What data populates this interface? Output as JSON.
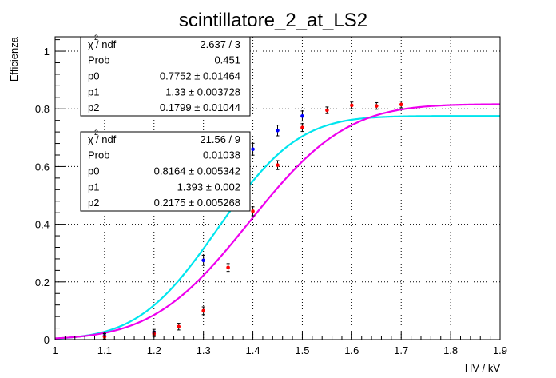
{
  "chart_data": {
    "type": "scatter",
    "title": "scintillatore_2_at_LS2",
    "xlabel": "HV / kV",
    "ylabel": "Efficienza",
    "xlim": [
      1.0,
      1.9
    ],
    "ylim": [
      0.0,
      1.05
    ],
    "x_ticks": [
      1.0,
      1.1,
      1.2,
      1.3,
      1.4,
      1.5,
      1.6,
      1.7,
      1.8,
      1.9
    ],
    "x_tick_labels": [
      "1",
      "1.1",
      "1.2",
      "1.3",
      "1.4",
      "1.5",
      "1.6",
      "1.7",
      "1.8",
      "1.9"
    ],
    "y_ticks": [
      0,
      0.2,
      0.4,
      0.6,
      0.8,
      1.0
    ],
    "y_tick_labels": [
      "0",
      "0.2",
      "0.4",
      "0.6",
      "0.8",
      "1"
    ],
    "grid": true,
    "series": [
      {
        "name": "blue",
        "marker_color": "#0000ff",
        "fit_color": "#00e5ee",
        "x": [
          1.1,
          1.2,
          1.3,
          1.4,
          1.45,
          1.5
        ],
        "y": [
          0.012,
          0.025,
          0.275,
          0.66,
          0.725,
          0.775
        ],
        "err": [
          0.004,
          0.005,
          0.012,
          0.015,
          0.013,
          0.012
        ],
        "fit": {
          "p0": 0.7752,
          "p1": 1.33,
          "p2": 0.1799
        }
      },
      {
        "name": "red",
        "marker_color": "#ff0000",
        "fit_color": "#ee00ee",
        "x": [
          1.1,
          1.2,
          1.25,
          1.3,
          1.35,
          1.4,
          1.45,
          1.5,
          1.55,
          1.6,
          1.65,
          1.7
        ],
        "y": [
          0.01,
          0.02,
          0.045,
          0.1,
          0.25,
          0.445,
          0.605,
          0.735,
          0.795,
          0.812,
          0.81,
          0.815
        ],
        "err": [
          0.004,
          0.004,
          0.006,
          0.008,
          0.008,
          0.01,
          0.01,
          0.008,
          0.006,
          0.006,
          0.006,
          0.006
        ],
        "fit": {
          "p0": 0.8164,
          "p1": 1.393,
          "p2": 0.2175
        }
      }
    ],
    "stats_boxes": [
      {
        "rows": [
          {
            "label": "χ",
            "sup": "2",
            "label_rest": " / ndf",
            "value": "2.637 / 3"
          },
          {
            "label": "Prob",
            "value": "0.451"
          },
          {
            "label": "p0",
            "value": "0.7752 ±  0.01464"
          },
          {
            "label": "p1",
            "value": "1.33 ±  0.003728"
          },
          {
            "label": "p2",
            "value": "0.1799 ±  0.01044"
          }
        ]
      },
      {
        "rows": [
          {
            "label": "χ",
            "sup": "2",
            "label_rest": " / ndf",
            "value": "21.56 / 9"
          },
          {
            "label": "Prob",
            "value": "0.01038"
          },
          {
            "label": "p0",
            "value": "0.8164 ±  0.005342"
          },
          {
            "label": "p1",
            "value": "1.393 ±  0.002"
          },
          {
            "label": "p2",
            "value": "0.2175 ±  0.005268"
          }
        ]
      }
    ]
  }
}
